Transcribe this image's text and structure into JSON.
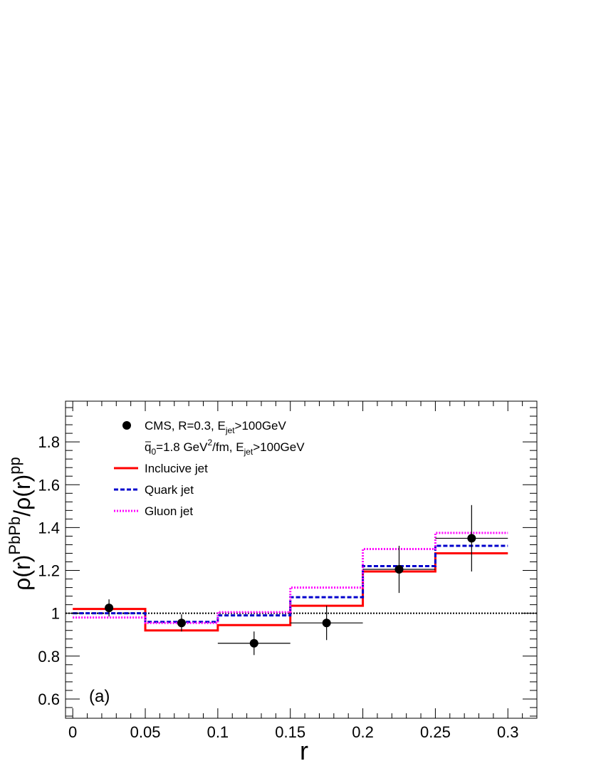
{
  "chart_data": {
    "type": "step",
    "xlabel": "r",
    "ylabel": {
      "base": "ρ(r)",
      "sup1": "PbPb",
      "mid": "/ρ(r)",
      "sup2": "pp"
    },
    "xlim": [
      -0.005,
      0.32
    ],
    "ylim": [
      0.51,
      1.99
    ],
    "x_ticks": [
      0,
      0.05,
      0.1,
      0.15,
      0.2,
      0.25,
      0.3
    ],
    "x_tick_labels": [
      "0",
      "0.05",
      "0.1",
      "0.15",
      "0.2",
      "0.25",
      "0.3"
    ],
    "y_ticks": [
      0.6,
      0.8,
      1.0,
      1.2,
      1.4,
      1.6,
      1.8
    ],
    "y_tick_labels": [
      "0.6",
      "0.8",
      "1",
      "1.2",
      "1.4",
      "1.6",
      "1.8"
    ],
    "reference_line": 1.0,
    "bin_edges": [
      0,
      0.05,
      0.1,
      0.15,
      0.2,
      0.25,
      0.3
    ],
    "series": [
      {
        "name": "Inclucive jet",
        "style": "solid",
        "color": "#ff0000",
        "values": [
          1.02,
          0.92,
          0.945,
          1.035,
          1.195,
          1.28
        ]
      },
      {
        "name": "Quark jet",
        "style": "dashed",
        "color": "#0000cc",
        "values": [
          1.0,
          0.96,
          0.99,
          1.075,
          1.22,
          1.315
        ]
      },
      {
        "name": "Gluon jet",
        "style": "dotted",
        "color": "#ff00ff",
        "values": [
          0.98,
          0.955,
          1.005,
          1.12,
          1.3,
          1.375
        ]
      }
    ],
    "data_points": {
      "name": "CMS, R=0.3, E_jet>100GeV",
      "points": [
        {
          "x": 0.025,
          "y": 1.025,
          "xerr": 0.0,
          "yerr": 0.04
        },
        {
          "x": 0.075,
          "y": 0.955,
          "xerr": 0.0,
          "yerr": 0.04
        },
        {
          "x": 0.125,
          "y": 0.86,
          "xerr": 0.025,
          "yerr": 0.055
        },
        {
          "x": 0.175,
          "y": 0.955,
          "xerr": 0.025,
          "yerr": 0.08
        },
        {
          "x": 0.225,
          "y": 1.205,
          "xerr": 0.025,
          "yerr": 0.11
        },
        {
          "x": 0.275,
          "y": 1.35,
          "xerr": 0.025,
          "yerr": 0.155
        }
      ]
    },
    "legend": {
      "placement": "top-left",
      "entries": [
        {
          "id": "cms",
          "text_parts": [
            "CMS, R=0.3, E",
            "jet",
            ">100GeV"
          ]
        },
        {
          "id": "q0",
          "text_parts": [
            "q",
            "0",
            "=1.8 GeV",
            "2",
            "/fm, E",
            "jet",
            ">100GeV"
          ]
        },
        {
          "id": "inclusive",
          "text": "Inclucive jet"
        },
        {
          "id": "quark",
          "text": "Quark jet"
        },
        {
          "id": "gluon",
          "text": "Gluon jet"
        }
      ]
    },
    "panel_label": "(a)"
  }
}
